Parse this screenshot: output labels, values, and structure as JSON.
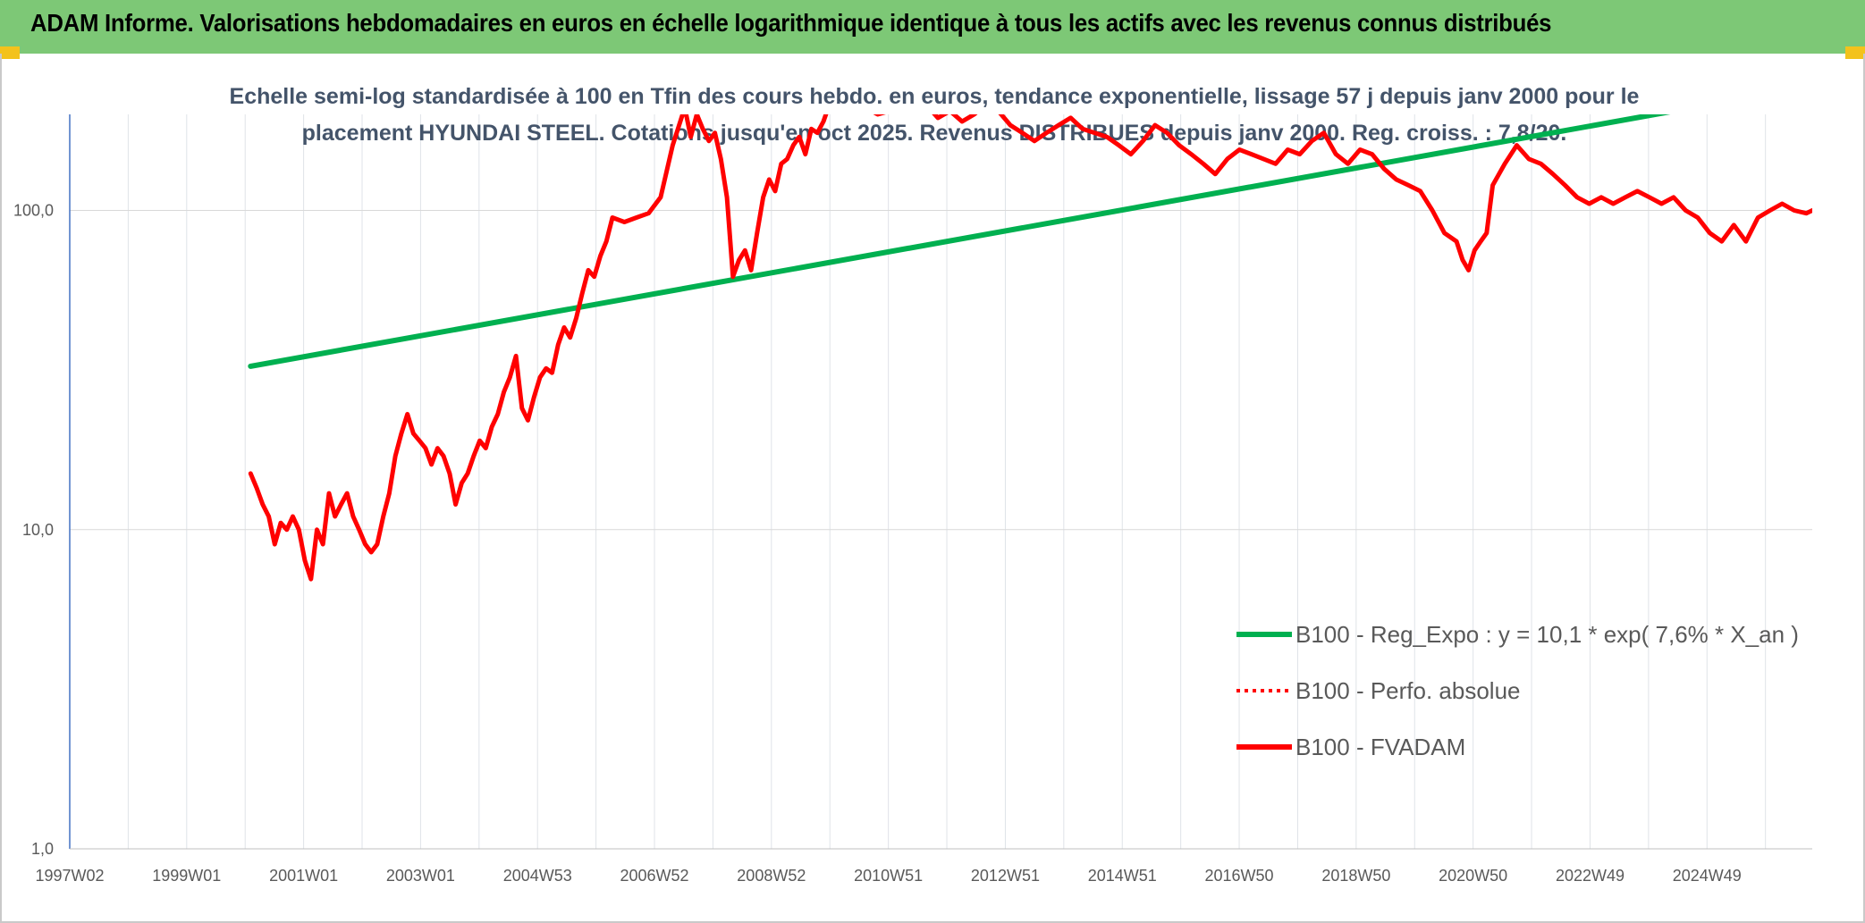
{
  "header": {
    "title": "ADAM Informe. Valorisations hebdomadaires en euros en échelle logarithmique identique à tous les actifs avec les revenus connus distribués"
  },
  "colors": {
    "banner": "#7dc876",
    "corner_accent": "#f3c21c",
    "regression": "#00b050",
    "price": "#ff0000"
  },
  "chart_data": {
    "type": "line",
    "title_lines": [
      "Echelle semi-log standardisée à 100 en Tfin des cours hebdo. en euros, tendance exponentielle, lissage 57 j depuis janv 2000 pour le",
      "placement HYUNDAI STEEL. Cotations jusqu'en oct 2025. Revenus DISTRIBUES depuis janv 2000. Reg. croiss. : 7,8/20."
    ],
    "y_scale": "log",
    "y_ticks": [
      "1,0",
      "10,0",
      "100,0"
    ],
    "ylim": [
      1,
      200
    ],
    "x_ticks": [
      "1997W02",
      "1999W01",
      "2001W01",
      "2003W01",
      "2004W53",
      "2006W52",
      "2008W52",
      "2010W51",
      "2012W51",
      "2014W51",
      "2016W50",
      "2018W50",
      "2020W50",
      "2022W49",
      "2024W49"
    ],
    "xlim": [
      1997.0,
      2025.9
    ],
    "grid": true,
    "legend_position": "bottom-right",
    "legend": [
      {
        "label": "B100 - Reg_Expo : y = 10,1 * exp( 7,6% *  X_an )",
        "style": "solid",
        "color": "#00b050"
      },
      {
        "label": "B100 - Perfo. absolue",
        "style": "dotted",
        "color": "#ff0000"
      },
      {
        "label": "B100 - FVADAM",
        "style": "solid",
        "color": "#ff0000"
      }
    ],
    "series": [
      {
        "name": "B100 - Reg_Expo : y = 10,1 * exp( 7,6% *  X_an )",
        "color": "#00b050",
        "x": [
          2000.0,
          2025.9
        ],
        "y": [
          32.5,
          245
        ]
      },
      {
        "name": "B100 - FVADAM",
        "color": "#ff0000",
        "x": [
          2000.0,
          2000.1,
          2000.2,
          2000.3,
          2000.4,
          2000.5,
          2000.6,
          2000.7,
          2000.8,
          2000.9,
          2001.0,
          2001.1,
          2001.2,
          2001.3,
          2001.4,
          2001.5,
          2001.6,
          2001.7,
          2001.8,
          2001.9,
          2002.0,
          2002.1,
          2002.2,
          2002.3,
          2002.4,
          2002.5,
          2002.6,
          2002.7,
          2002.8,
          2002.9,
          2003.0,
          2003.1,
          2003.2,
          2003.3,
          2003.4,
          2003.5,
          2003.6,
          2003.7,
          2003.8,
          2003.9,
          2004.0,
          2004.1,
          2004.2,
          2004.3,
          2004.4,
          2004.5,
          2004.6,
          2004.7,
          2004.8,
          2004.9,
          2005.0,
          2005.1,
          2005.2,
          2005.3,
          2005.4,
          2005.5,
          2005.6,
          2005.7,
          2005.8,
          2005.9,
          2006.0,
          2006.2,
          2006.4,
          2006.6,
          2006.8,
          2007.0,
          2007.2,
          2007.3,
          2007.4,
          2007.5,
          2007.6,
          2007.7,
          2007.8,
          2007.9,
          2008.0,
          2008.1,
          2008.2,
          2008.3,
          2008.4,
          2008.5,
          2008.6,
          2008.7,
          2008.8,
          2008.9,
          2009.0,
          2009.1,
          2009.2,
          2009.3,
          2009.4,
          2009.5,
          2009.6,
          2009.8,
          2010.0,
          2010.2,
          2010.4,
          2010.6,
          2010.8,
          2011.0,
          2011.2,
          2011.4,
          2011.6,
          2011.8,
          2012.0,
          2012.2,
          2012.4,
          2012.6,
          2012.8,
          2013.0,
          2013.2,
          2013.4,
          2013.6,
          2013.8,
          2014.0,
          2014.2,
          2014.4,
          2014.6,
          2014.8,
          2015.0,
          2015.2,
          2015.4,
          2015.6,
          2015.8,
          2016.0,
          2016.2,
          2016.4,
          2016.6,
          2016.8,
          2017.0,
          2017.2,
          2017.4,
          2017.6,
          2017.8,
          2018.0,
          2018.2,
          2018.4,
          2018.6,
          2018.8,
          2019.0,
          2019.2,
          2019.4,
          2019.6,
          2019.8,
          2020.0,
          2020.1,
          2020.2,
          2020.3,
          2020.4,
          2020.5,
          2020.6,
          2020.8,
          2021.0,
          2021.2,
          2021.4,
          2021.6,
          2021.8,
          2022.0,
          2022.2,
          2022.4,
          2022.6,
          2022.8,
          2023.0,
          2023.2,
          2023.4,
          2023.6,
          2023.8,
          2024.0,
          2024.2,
          2024.4,
          2024.6,
          2024.8,
          2025.0,
          2025.2,
          2025.4,
          2025.6,
          2025.8,
          2025.9
        ],
        "y": [
          15,
          13.5,
          12,
          11,
          9,
          10.5,
          10,
          11,
          10,
          8,
          7,
          10,
          9,
          13,
          11,
          12,
          13,
          11,
          10,
          9,
          8.5,
          9,
          11,
          13,
          17,
          20,
          23,
          20,
          19,
          18,
          16,
          18,
          17,
          15,
          12,
          14,
          15,
          17,
          19,
          18,
          21,
          23,
          27,
          30,
          35,
          24,
          22,
          26,
          30,
          32,
          31,
          38,
          43,
          40,
          46,
          55,
          65,
          62,
          72,
          80,
          95,
          92,
          95,
          98,
          110,
          160,
          210,
          170,
          200,
          180,
          165,
          175,
          145,
          110,
          62,
          70,
          75,
          65,
          85,
          110,
          125,
          115,
          140,
          145,
          160,
          170,
          150,
          180,
          175,
          190,
          215,
          205,
          230,
          210,
          200,
          205,
          220,
          235,
          215,
          195,
          205,
          190,
          200,
          215,
          205,
          185,
          175,
          165,
          175,
          185,
          195,
          180,
          175,
          170,
          160,
          150,
          165,
          185,
          175,
          160,
          150,
          140,
          130,
          145,
          155,
          150,
          145,
          140,
          155,
          150,
          165,
          175,
          150,
          140,
          155,
          150,
          135,
          125,
          120,
          115,
          100,
          85,
          80,
          70,
          65,
          75,
          80,
          85,
          120,
          140,
          160,
          145,
          140,
          130,
          120,
          110,
          105,
          110,
          105,
          110,
          115,
          110,
          105,
          110,
          100,
          95,
          85,
          80,
          90,
          80,
          95,
          100,
          105,
          100,
          98,
          100
        ]
      }
    ]
  }
}
